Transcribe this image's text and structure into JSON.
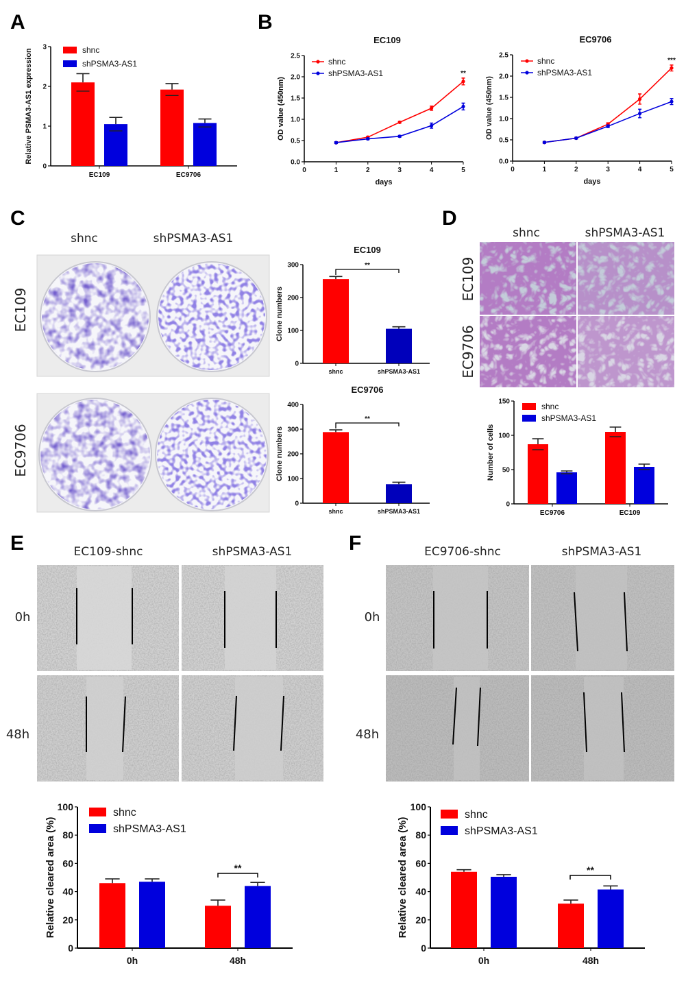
{
  "panel_labels": [
    "A",
    "B",
    "C",
    "D",
    "E",
    "F"
  ],
  "colors": {
    "shnc": "#ff0000",
    "sh": "#0000dd",
    "sh_bar_dark": "#0000bb"
  },
  "images": {
    "C": {
      "col_labels": [
        "shnc",
        "shPSMA3-AS1"
      ],
      "row_labels": [
        "EC109",
        "EC9706"
      ]
    },
    "D": {
      "col_labels": [
        "shnc",
        "shPSMA3-AS1"
      ],
      "row_labels": [
        "EC109",
        "EC9706"
      ]
    },
    "E": {
      "col_labels": [
        "EC109-shnc",
        "shPSMA3-AS1"
      ],
      "row_labels": [
        "0h",
        "48h"
      ]
    },
    "F": {
      "col_labels": [
        "EC9706-shnc",
        "shPSMA3-AS1"
      ],
      "row_labels": [
        "0h",
        "48h"
      ]
    }
  },
  "chart_data": [
    {
      "id": "A",
      "type": "bar",
      "title": "",
      "categories": [
        "EC109",
        "EC9706"
      ],
      "series": [
        {
          "name": "shnc",
          "values": [
            2.1,
            1.92
          ],
          "errors": [
            0.22,
            0.15
          ]
        },
        {
          "name": "shPSMA3-AS1",
          "values": [
            1.05,
            1.08
          ],
          "errors": [
            0.17,
            0.1
          ]
        }
      ],
      "ylabel": "Relative PSMA3-AS1 expression",
      "ylim": [
        0,
        3
      ],
      "yticks": [
        "0",
        "1",
        "2",
        "3"
      ]
    },
    {
      "id": "B1",
      "type": "line",
      "title": "EC109",
      "x": [
        1,
        2,
        3,
        4,
        5
      ],
      "series": [
        {
          "name": "shnc",
          "values": [
            0.45,
            0.58,
            0.93,
            1.26,
            1.89
          ],
          "errors": [
            0.02,
            0.02,
            0.02,
            0.05,
            0.08
          ]
        },
        {
          "name": "shPSMA3-AS1",
          "values": [
            0.45,
            0.54,
            0.6,
            0.85,
            1.3
          ],
          "errors": [
            0.02,
            0.02,
            0.02,
            0.06,
            0.08
          ]
        }
      ],
      "xlabel": "days",
      "ylabel": "OD value (450nm)",
      "xlim": [
        0,
        5
      ],
      "ylim": [
        0,
        2.5
      ],
      "xticks": [
        "0",
        "1",
        "2",
        "3",
        "4",
        "5"
      ],
      "yticks": [
        "0.0",
        "0.5",
        "1.0",
        "1.5",
        "2.0",
        "2.5"
      ],
      "annotation": "**"
    },
    {
      "id": "B2",
      "type": "line",
      "title": "EC9706",
      "x": [
        1,
        2,
        3,
        4,
        5
      ],
      "series": [
        {
          "name": "shnc",
          "values": [
            0.44,
            0.54,
            0.87,
            1.46,
            2.19
          ],
          "errors": [
            0.02,
            0.02,
            0.03,
            0.12,
            0.07
          ]
        },
        {
          "name": "shPSMA3-AS1",
          "values": [
            0.44,
            0.54,
            0.82,
            1.12,
            1.4
          ],
          "errors": [
            0.02,
            0.02,
            0.03,
            0.1,
            0.07
          ]
        }
      ],
      "xlabel": "days",
      "ylabel": "OD value (450nm)",
      "xlim": [
        0,
        5
      ],
      "ylim": [
        0,
        2.5
      ],
      "xticks": [
        "0",
        "1",
        "2",
        "3",
        "4",
        "5"
      ],
      "yticks": [
        "0.0",
        "0.5",
        "1.0",
        "1.5",
        "2.0",
        "2.5"
      ],
      "annotation": "***"
    },
    {
      "id": "C1",
      "type": "bar",
      "title": "EC109",
      "categories": [
        "shnc",
        "shPSMA3-AS1"
      ],
      "values": [
        256,
        105
      ],
      "errors": [
        8,
        6
      ],
      "ylabel": "Clone numbers",
      "ylim": [
        0,
        300
      ],
      "yticks": [
        "0",
        "100",
        "200",
        "300"
      ],
      "annotation": "**"
    },
    {
      "id": "C2",
      "type": "bar",
      "title": "EC9706",
      "categories": [
        "shnc",
        "shPSMA3-AS1"
      ],
      "values": [
        288,
        77
      ],
      "errors": [
        9,
        8
      ],
      "ylabel": "Clone numbers",
      "ylim": [
        0,
        400
      ],
      "yticks": [
        "0",
        "100",
        "200",
        "300",
        "400"
      ],
      "annotation": "**"
    },
    {
      "id": "D",
      "type": "bar",
      "title": "",
      "categories": [
        "EC9706",
        "EC109"
      ],
      "series": [
        {
          "name": "shnc",
          "values": [
            87,
            105
          ],
          "errors": [
            8,
            7
          ]
        },
        {
          "name": "shPSMA3-AS1",
          "values": [
            46,
            54
          ],
          "errors": [
            2,
            4
          ]
        }
      ],
      "ylabel": "Number of cells",
      "ylim": [
        0,
        150
      ],
      "yticks": [
        "0",
        "50",
        "100",
        "150"
      ]
    },
    {
      "id": "E",
      "type": "bar",
      "title": "",
      "categories": [
        "0h",
        "48h"
      ],
      "series": [
        {
          "name": "shnc",
          "values": [
            46,
            30
          ],
          "errors": [
            3,
            4
          ]
        },
        {
          "name": "shPSMA3-AS1",
          "values": [
            47,
            44
          ],
          "errors": [
            2,
            2.5
          ]
        }
      ],
      "ylabel": "Relative cleared area (%)",
      "ylim": [
        0,
        100
      ],
      "yticks": [
        "0",
        "20",
        "40",
        "60",
        "80",
        "100"
      ],
      "annotation": "**"
    },
    {
      "id": "F",
      "type": "bar",
      "title": "",
      "categories": [
        "0h",
        "48h"
      ],
      "series": [
        {
          "name": "shnc",
          "values": [
            54,
            31.5
          ],
          "errors": [
            1.5,
            2.5
          ]
        },
        {
          "name": "shPSMA3-AS1",
          "values": [
            50.5,
            41.5
          ],
          "errors": [
            1.5,
            2.5
          ]
        }
      ],
      "ylabel": "Relative cleared area (%)",
      "ylim": [
        0,
        100
      ],
      "yticks": [
        "0",
        "20",
        "40",
        "60",
        "80",
        "100"
      ],
      "annotation": "**"
    }
  ]
}
